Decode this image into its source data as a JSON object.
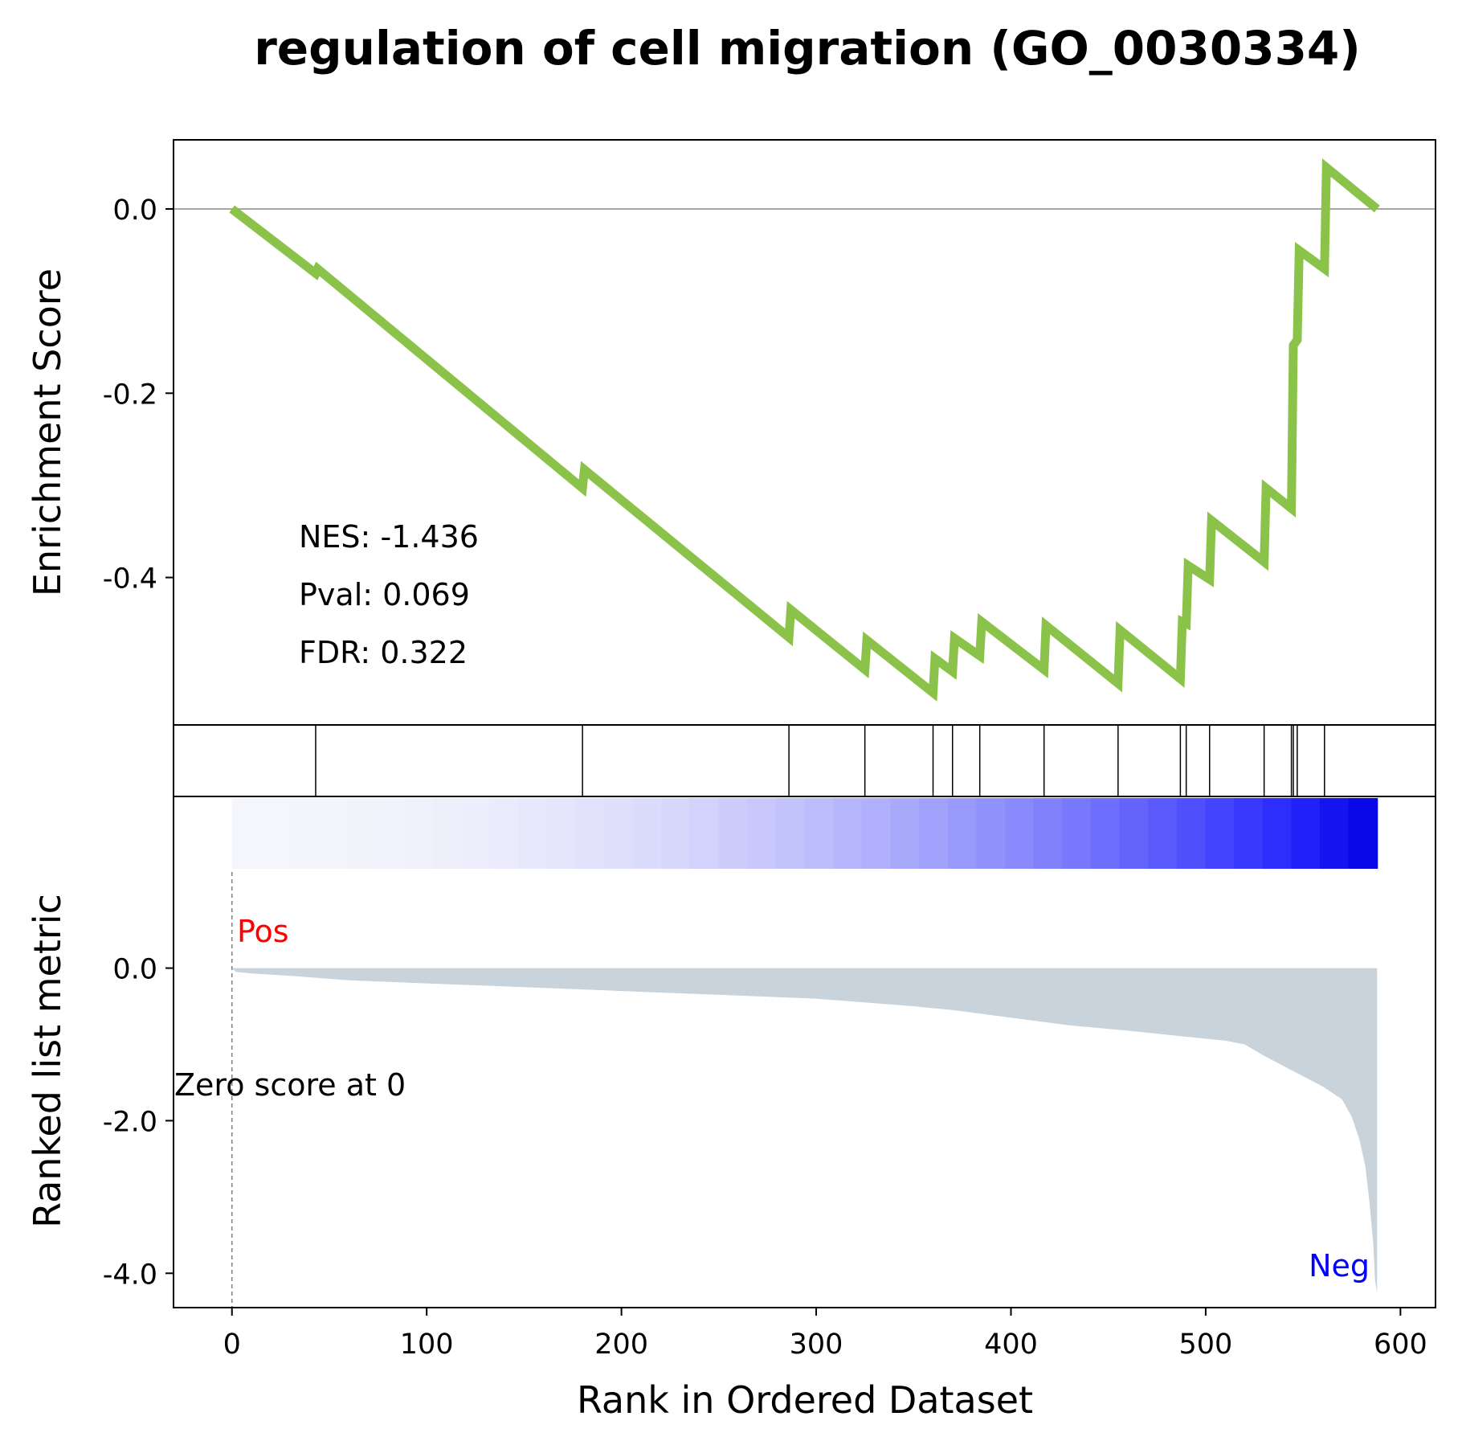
{
  "chart_data": {
    "type": "line",
    "title": "regulation of cell migration (GO_0030334)",
    "xlabel": "Rank in Ordered Dataset",
    "xlim": [
      -30,
      618
    ],
    "xticks": [
      0,
      100,
      200,
      300,
      400,
      500,
      600
    ],
    "enrichment": {
      "ylabel": "Enrichment Score",
      "ylim": [
        -0.56,
        0.075
      ],
      "yticks": [
        {
          "value": 0.0,
          "label": "0.0"
        },
        {
          "value": -0.2,
          "label": "-0.2"
        },
        {
          "value": -0.4,
          "label": "-0.4"
        }
      ],
      "line_color": "#8bc34a",
      "points": [
        [
          0,
          0.0
        ],
        [
          43,
          -0.07
        ],
        [
          44,
          -0.065
        ],
        [
          180,
          -0.303
        ],
        [
          181,
          -0.283
        ],
        [
          286,
          -0.465
        ],
        [
          287,
          -0.435
        ],
        [
          325,
          -0.5
        ],
        [
          326,
          -0.468
        ],
        [
          360,
          -0.525
        ],
        [
          361,
          -0.488
        ],
        [
          370,
          -0.502
        ],
        [
          371,
          -0.466
        ],
        [
          384,
          -0.485
        ],
        [
          385,
          -0.448
        ],
        [
          417,
          -0.5
        ],
        [
          418,
          -0.452
        ],
        [
          455,
          -0.515
        ],
        [
          456,
          -0.457
        ],
        [
          487,
          -0.51
        ],
        [
          488,
          -0.448
        ],
        [
          490,
          -0.45
        ],
        [
          491,
          -0.387
        ],
        [
          502,
          -0.402
        ],
        [
          503,
          -0.338
        ],
        [
          530,
          -0.383
        ],
        [
          531,
          -0.303
        ],
        [
          544,
          -0.325
        ],
        [
          545,
          -0.148
        ],
        [
          547,
          -0.142
        ],
        [
          548,
          -0.045
        ],
        [
          561,
          -0.065
        ],
        [
          562,
          0.045
        ],
        [
          588,
          0.0
        ]
      ],
      "stats": [
        "NES: -1.436",
        "Pval: 0.069",
        "FDR: 0.322"
      ]
    },
    "hits": [
      43,
      180,
      286,
      325,
      360,
      370,
      384,
      417,
      455,
      487,
      490,
      502,
      530,
      544,
      545,
      547,
      561
    ],
    "ranked_metric": {
      "ylabel": "Ranked list metric",
      "ylim": [
        -4.45,
        2.25
      ],
      "yticks": [
        {
          "value": 0.0,
          "label": "0.0"
        },
        {
          "value": -2.0,
          "label": "-2.0"
        },
        {
          "value": -4.0,
          "label": "-4.0"
        }
      ],
      "fill_color": "#c8d3dc",
      "points": [
        [
          0,
          0.0
        ],
        [
          2,
          -0.05
        ],
        [
          10,
          -0.07
        ],
        [
          30,
          -0.1
        ],
        [
          60,
          -0.16
        ],
        [
          100,
          -0.2
        ],
        [
          150,
          -0.25
        ],
        [
          200,
          -0.3
        ],
        [
          250,
          -0.35
        ],
        [
          300,
          -0.4
        ],
        [
          350,
          -0.5
        ],
        [
          370,
          -0.55
        ],
        [
          400,
          -0.65
        ],
        [
          430,
          -0.75
        ],
        [
          460,
          -0.82
        ],
        [
          490,
          -0.9
        ],
        [
          510,
          -0.95
        ],
        [
          520,
          -1.0
        ],
        [
          530,
          -1.15
        ],
        [
          545,
          -1.35
        ],
        [
          560,
          -1.55
        ],
        [
          570,
          -1.72
        ],
        [
          575,
          -1.95
        ],
        [
          579,
          -2.25
        ],
        [
          582,
          -2.6
        ],
        [
          584,
          -3.05
        ],
        [
          586,
          -3.6
        ],
        [
          587,
          -4.1
        ],
        [
          588,
          -4.25
        ],
        [
          588,
          0.0
        ]
      ],
      "pos_label": "Pos",
      "neg_label": "Neg",
      "zero_label": "Zero score at 0",
      "pos_color": "#ff0000",
      "neg_color": "#0000ff"
    }
  }
}
